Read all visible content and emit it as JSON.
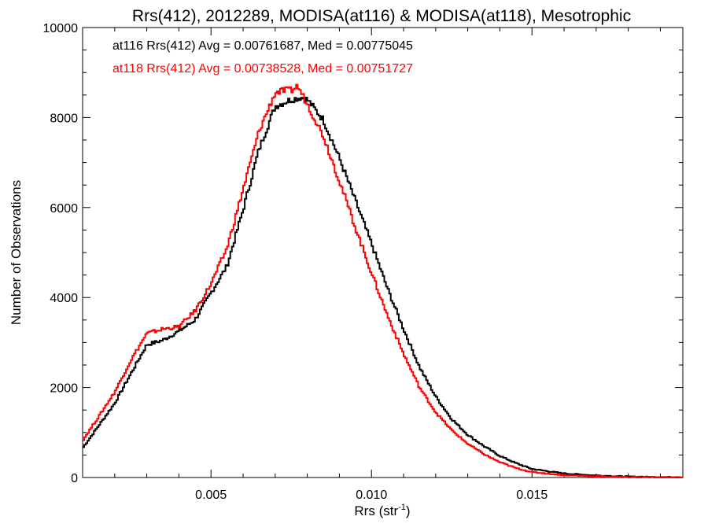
{
  "chart_data": {
    "type": "line",
    "title": "Rrs(412), 2012289, MODISA(at116) & MODISA(at118), Mesotrophic",
    "xlabel": "Rrs (str",
    "xlabel_sup": "-1",
    "xlabel_close": ")",
    "ylabel": "Number of Observations",
    "xlim": [
      0.001,
      0.0197
    ],
    "ylim": [
      0,
      10000
    ],
    "x_ticks": [
      0.005,
      0.01,
      0.015
    ],
    "x_tick_labels": [
      "0.005",
      "0.010",
      "0.015"
    ],
    "y_ticks": [
      0,
      2000,
      4000,
      6000,
      8000,
      10000
    ],
    "y_tick_labels": [
      "0",
      "2000",
      "4000",
      "6000",
      "8000",
      "10000"
    ],
    "grid": false,
    "legend": "top-left",
    "annotations": [
      {
        "text": "at116 Rrs(412) Avg = 0.00761687, Med = 0.00775045",
        "color": "#000000"
      },
      {
        "text": "at118 Rrs(412) Avg = 0.00738528, Med = 0.00751727",
        "color": "#ff0000"
      }
    ],
    "series": [
      {
        "color": "#000000",
        "step": "histogram",
        "x": [
          0.001,
          0.0015,
          0.002,
          0.0025,
          0.003,
          0.0035,
          0.004,
          0.0045,
          0.005,
          0.0055,
          0.006,
          0.0065,
          0.007,
          0.0075,
          0.0078,
          0.008,
          0.0085,
          0.009,
          0.0095,
          0.01,
          0.0105,
          0.011,
          0.0115,
          0.012,
          0.0125,
          0.013,
          0.0135,
          0.014,
          0.0145,
          0.015,
          0.016,
          0.017,
          0.018,
          0.019,
          0.0197
        ],
        "y": [
          650,
          1150,
          1650,
          2300,
          2950,
          3050,
          3250,
          3500,
          4100,
          4700,
          5950,
          7300,
          8250,
          8400,
          8450,
          8400,
          7950,
          7100,
          6150,
          5200,
          4200,
          3300,
          2450,
          1800,
          1300,
          950,
          700,
          480,
          320,
          190,
          90,
          45,
          20,
          10,
          5
        ]
      },
      {
        "color": "#ff0000",
        "step": "histogram",
        "x": [
          0.001,
          0.0015,
          0.002,
          0.0025,
          0.003,
          0.0035,
          0.004,
          0.0045,
          0.005,
          0.0055,
          0.006,
          0.0065,
          0.007,
          0.0073,
          0.0075,
          0.0077,
          0.008,
          0.0085,
          0.009,
          0.0095,
          0.01,
          0.0105,
          0.011,
          0.0115,
          0.012,
          0.0125,
          0.013,
          0.0135,
          0.014,
          0.0145,
          0.015,
          0.016,
          0.017,
          0.018,
          0.019,
          0.0197
        ],
        "y": [
          820,
          1350,
          1900,
          2600,
          3200,
          3300,
          3350,
          3700,
          4300,
          5100,
          6400,
          7700,
          8550,
          8600,
          8600,
          8700,
          8300,
          7600,
          6600,
          5550,
          4550,
          3600,
          2750,
          2000,
          1450,
          1050,
          750,
          520,
          340,
          210,
          120,
          55,
          25,
          10,
          5,
          3
        ]
      }
    ]
  }
}
